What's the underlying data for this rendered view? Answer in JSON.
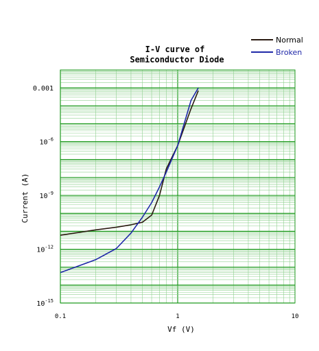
{
  "chart_data": {
    "type": "line",
    "title": [
      "I-V curve of",
      "Semiconductor Diode"
    ],
    "xlabel": "Vf (V)",
    "ylabel": "Current (A)",
    "xscale": "log",
    "yscale": "log",
    "xlim": [
      0.1,
      10
    ],
    "ylim": [
      1e-15,
      0.01
    ],
    "xticks": [
      {
        "value": 0.1,
        "label": "0.1"
      },
      {
        "value": 1,
        "label": "1"
      },
      {
        "value": 10,
        "label": "10"
      }
    ],
    "yticks": [
      {
        "value": 1e-15,
        "base": "10",
        "exp": "-15"
      },
      {
        "value": 1e-12,
        "base": "10",
        "exp": "-12"
      },
      {
        "value": 1e-09,
        "base": "10",
        "exp": "-9"
      },
      {
        "value": 1e-06,
        "base": "10",
        "exp": "-6"
      },
      {
        "value": 0.001,
        "base": "0.001",
        "exp": ""
      }
    ],
    "grid": true,
    "legend_position": "top-right",
    "series": [
      {
        "name": "Normal",
        "color": "#2a1a10",
        "points": [
          [
            0.1,
            6e-12
          ],
          [
            0.2,
            1.2e-11
          ],
          [
            0.3,
            1.7e-11
          ],
          [
            0.4,
            2.3e-11
          ],
          [
            0.5,
            3.2e-11
          ],
          [
            0.6,
            8e-11
          ],
          [
            0.7,
            1e-09
          ],
          [
            0.8,
            3e-08
          ],
          [
            1.0,
            6e-07
          ],
          [
            1.3,
            7e-05
          ],
          [
            1.5,
            0.0007
          ]
        ]
      },
      {
        "name": "Broken",
        "color": "#1f28a8",
        "points": [
          [
            0.1,
            5e-14
          ],
          [
            0.2,
            2.6e-13
          ],
          [
            0.3,
            1.1e-12
          ],
          [
            0.4,
            8e-12
          ],
          [
            0.5,
            6e-11
          ],
          [
            0.6,
            4e-10
          ],
          [
            0.7,
            3e-09
          ],
          [
            0.8,
            2e-08
          ],
          [
            1.0,
            6e-07
          ],
          [
            1.3,
            0.0002
          ],
          [
            1.5,
            0.001
          ]
        ]
      }
    ]
  },
  "colors": {
    "background": "#ffffff",
    "plot_background": "#ffffff",
    "grid_major": "#1f9a1f",
    "grid_minor": "#8fd08f",
    "axis_text": "#000000"
  }
}
